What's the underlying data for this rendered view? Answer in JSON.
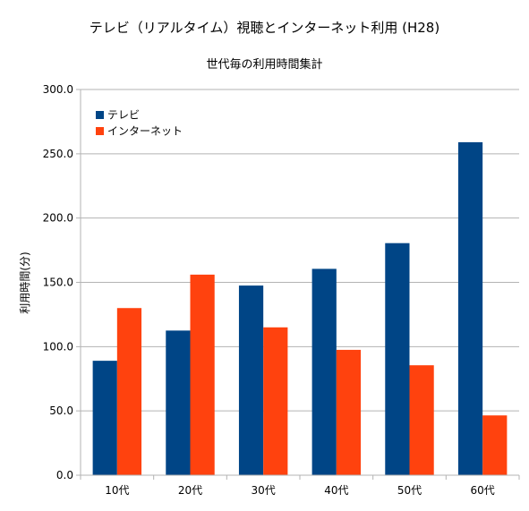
{
  "chart_data": {
    "type": "bar",
    "title": "テレビ（リアルタイム）視聴とインターネット利用 (H28)",
    "subtitle": "世代毎の利用時間集計",
    "xlabel": "",
    "ylabel": "利用時間(分)",
    "ylim": [
      0,
      300
    ],
    "yticks": [
      "0.0",
      "50.0",
      "100.0",
      "150.0",
      "200.0",
      "250.0",
      "300.0"
    ],
    "ytick_values": [
      0,
      50,
      100,
      150,
      200,
      250,
      300
    ],
    "grid": true,
    "legend_position": "top-left",
    "categories": [
      "10代",
      "20代",
      "30代",
      "40代",
      "50代",
      "60代"
    ],
    "series": [
      {
        "name": "テレビ",
        "color": "#004586",
        "values": [
          89.0,
          112.5,
          147.5,
          160.5,
          180.5,
          259.0
        ]
      },
      {
        "name": "インターネット",
        "color": "#ff420e",
        "values": [
          130.0,
          156.0,
          115.0,
          97.5,
          85.5,
          46.5
        ]
      }
    ]
  }
}
